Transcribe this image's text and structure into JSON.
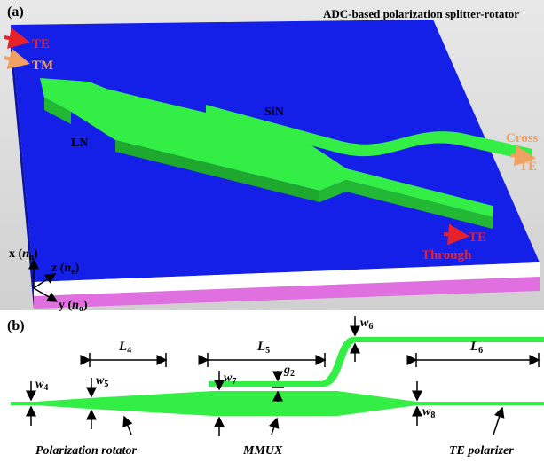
{
  "panel_a": {
    "label": "(a)",
    "title": "ADC-based polarization splitter-rotator",
    "input_te": "TE",
    "input_tm": "TM",
    "sin": "SiN",
    "ln": "LN",
    "cross": "Cross",
    "cross_te": "TE",
    "through_te": "TE",
    "through": "Through",
    "axes": [
      {
        "pre": "x (",
        "n": "n",
        "sub": "o",
        "post": ")"
      },
      {
        "pre": "z (",
        "n": "n",
        "sub": "e",
        "post": ")"
      },
      {
        "pre": "y (",
        "n": "n",
        "sub": "o",
        "post": ")"
      }
    ]
  },
  "panel_b": {
    "label": "(b)",
    "dims": [
      {
        "sym": "L",
        "sub": "4"
      },
      {
        "sym": "L",
        "sub": "5"
      },
      {
        "sym": "L",
        "sub": "6"
      },
      {
        "sym": "w",
        "sub": "4"
      },
      {
        "sym": "w",
        "sub": "5"
      },
      {
        "sym": "w",
        "sub": "6"
      },
      {
        "sym": "w",
        "sub": "7"
      },
      {
        "sym": "w",
        "sub": "8"
      },
      {
        "sym": "g",
        "sub": "2"
      }
    ],
    "parts": [
      "Polarization rotator",
      "MMUX",
      "TE polarizer"
    ]
  }
}
